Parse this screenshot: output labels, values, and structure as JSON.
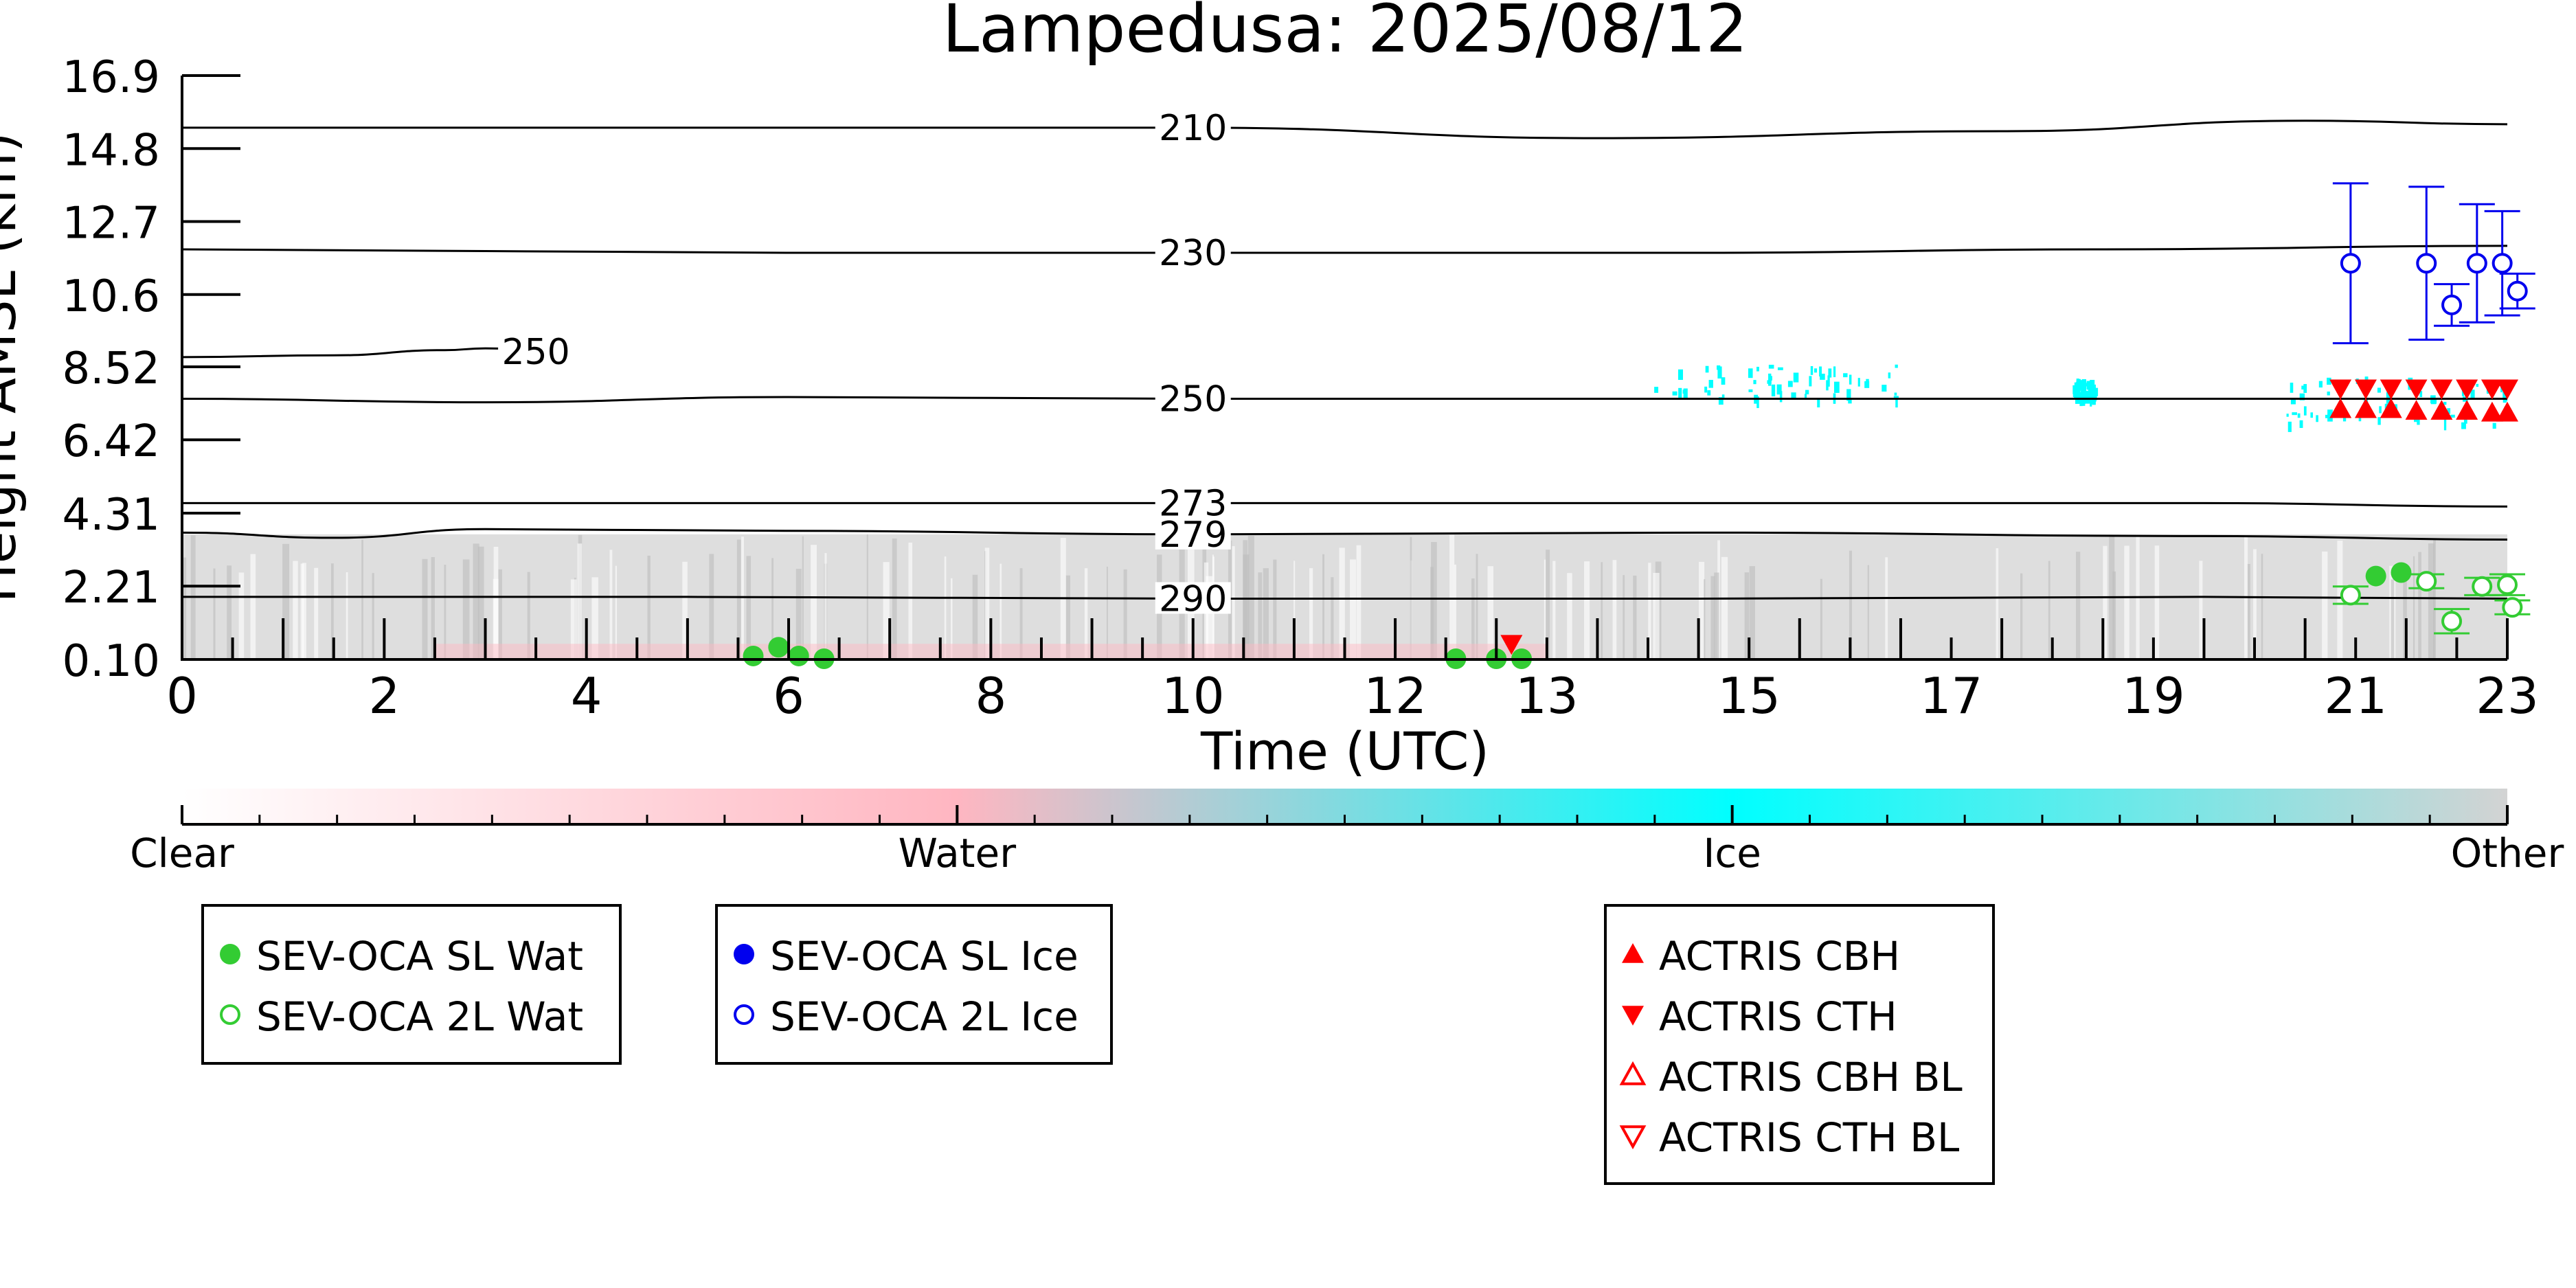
{
  "chart_data": {
    "type": "scatter",
    "title": "Lampedusa: 2025/08/12",
    "xlabel": "Time (UTC)",
    "ylabel": "Height AMSL (km)",
    "xlim": [
      0,
      23
    ],
    "ylim": [
      0.1,
      16.9
    ],
    "x_ticks": [
      {
        "value": 0,
        "label": "0"
      },
      {
        "value": 2,
        "label": "2"
      },
      {
        "value": 4,
        "label": "4"
      },
      {
        "value": 6,
        "label": "6"
      },
      {
        "value": 8,
        "label": "8"
      },
      {
        "value": 10,
        "label": "10"
      },
      {
        "value": 12,
        "label": "12"
      },
      {
        "value": 13.5,
        "label": "13"
      },
      {
        "value": 15.5,
        "label": "15"
      },
      {
        "value": 17.5,
        "label": "17"
      },
      {
        "value": 19.5,
        "label": "19"
      },
      {
        "value": 21.5,
        "label": "21"
      },
      {
        "value": 23,
        "label": "23"
      }
    ],
    "y_ticks": [
      {
        "value": 0.1,
        "label": "0.10"
      },
      {
        "value": 2.21,
        "label": "2.21"
      },
      {
        "value": 4.31,
        "label": "4.31"
      },
      {
        "value": 6.42,
        "label": "6.42"
      },
      {
        "value": 8.52,
        "label": "8.52"
      },
      {
        "value": 10.6,
        "label": "10.6"
      },
      {
        "value": 12.7,
        "label": "12.7"
      },
      {
        "value": 14.8,
        "label": "14.8"
      },
      {
        "value": 16.9,
        "label": "16.9"
      }
    ],
    "temperature_contours": [
      {
        "label": "210",
        "label_x": 10.0,
        "points": [
          [
            0,
            15.4
          ],
          [
            6,
            15.4
          ],
          [
            10,
            15.4
          ],
          [
            14,
            15.1
          ],
          [
            18,
            15.3
          ],
          [
            21,
            15.6
          ],
          [
            23,
            15.5
          ]
        ]
      },
      {
        "label": "230",
        "label_x": 10.0,
        "points": [
          [
            0,
            11.9
          ],
          [
            6,
            11.8
          ],
          [
            10,
            11.8
          ],
          [
            15,
            11.8
          ],
          [
            19,
            11.9
          ],
          [
            23,
            12.0
          ]
        ]
      },
      {
        "label": "250",
        "label_x": 3.5,
        "points": [
          [
            0,
            8.8
          ],
          [
            1.5,
            8.85
          ],
          [
            2.6,
            9.0
          ],
          [
            3.0,
            9.05
          ],
          [
            3.8,
            8.9
          ]
        ]
      },
      {
        "label": "250",
        "label_x": 10.0,
        "points": [
          [
            0,
            7.6
          ],
          [
            3,
            7.5
          ],
          [
            6,
            7.65
          ],
          [
            10,
            7.6
          ],
          [
            14,
            7.6
          ],
          [
            18,
            7.6
          ],
          [
            21,
            7.6
          ],
          [
            23,
            7.6
          ]
        ]
      },
      {
        "label": "273",
        "label_x": 10.0,
        "points": [
          [
            0,
            4.6
          ],
          [
            5,
            4.6
          ],
          [
            10,
            4.6
          ],
          [
            15,
            4.6
          ],
          [
            20,
            4.6
          ],
          [
            23,
            4.5
          ]
        ]
      },
      {
        "label": "279",
        "label_x": 10.0,
        "points": [
          [
            0,
            3.75
          ],
          [
            1.5,
            3.6
          ],
          [
            3,
            3.85
          ],
          [
            6,
            3.8
          ],
          [
            10,
            3.7
          ],
          [
            15,
            3.75
          ],
          [
            20,
            3.65
          ],
          [
            23,
            3.55
          ]
        ]
      },
      {
        "label": "290",
        "label_x": 10.0,
        "points": [
          [
            0,
            1.9
          ],
          [
            5,
            1.9
          ],
          [
            10,
            1.85
          ],
          [
            15,
            1.85
          ],
          [
            20,
            1.9
          ],
          [
            23,
            1.85
          ]
        ]
      }
    ],
    "classification_colorbar": {
      "labels": [
        "Clear",
        "Water",
        "Ice",
        "Other"
      ],
      "colors": [
        "#ffffff",
        "#ffb6c1",
        "#00ffff",
        "#d3d3d3"
      ]
    },
    "series": [
      {
        "name": "SEV-OCA SL Wat",
        "color": "#33cc33",
        "marker": "filled-circle",
        "points": [
          [
            5.65,
            0.2
          ],
          [
            5.9,
            0.45
          ],
          [
            6.1,
            0.2
          ],
          [
            6.35,
            0.12
          ],
          [
            12.6,
            0.12
          ],
          [
            13.0,
            0.12
          ],
          [
            13.25,
            0.12
          ],
          [
            21.7,
            2.5
          ],
          [
            21.95,
            2.6
          ]
        ]
      },
      {
        "name": "SEV-OCA 2L Wat",
        "color": "#33cc33",
        "marker": "open-circle",
        "points": [
          [
            21.45,
            1.95,
            0.25
          ],
          [
            22.2,
            2.35,
            0.2
          ],
          [
            22.45,
            1.2,
            0.35
          ],
          [
            22.75,
            2.2,
            0.25
          ],
          [
            23.0,
            2.25,
            0.3
          ],
          [
            23.05,
            1.6,
            0.2
          ]
        ]
      },
      {
        "name": "SEV-OCA SL Ice",
        "color": "#0000ee",
        "marker": "filled-circle",
        "points": []
      },
      {
        "name": "SEV-OCA 2L Ice",
        "color": "#0000ee",
        "marker": "open-circle",
        "points": [
          [
            21.45,
            11.5,
            2.3
          ],
          [
            22.2,
            11.5,
            2.2
          ],
          [
            22.45,
            10.3,
            0.6
          ],
          [
            22.7,
            11.5,
            1.7
          ],
          [
            22.95,
            11.5,
            1.5
          ],
          [
            23.1,
            10.7,
            0.5
          ]
        ]
      },
      {
        "name": "ACTRIS CBH",
        "color": "#ff0000",
        "marker": "triangle-up",
        "points": [
          [
            21.35,
            7.3
          ],
          [
            21.6,
            7.3
          ],
          [
            21.85,
            7.3
          ],
          [
            22.1,
            7.25
          ],
          [
            22.35,
            7.25
          ],
          [
            22.6,
            7.25
          ],
          [
            22.85,
            7.2
          ],
          [
            23.0,
            7.2
          ]
        ]
      },
      {
        "name": "ACTRIS CTH",
        "color": "#ff0000",
        "marker": "triangle-down",
        "points": [
          [
            13.15,
            0.55
          ],
          [
            21.35,
            7.9
          ],
          [
            21.6,
            7.9
          ],
          [
            21.85,
            7.9
          ],
          [
            22.1,
            7.9
          ],
          [
            22.35,
            7.9
          ],
          [
            22.6,
            7.9
          ],
          [
            22.85,
            7.9
          ],
          [
            23.0,
            7.9
          ]
        ]
      },
      {
        "name": "ACTRIS CBH BL",
        "color": "#ff0000",
        "marker": "open-triangle-up",
        "points": []
      },
      {
        "name": "ACTRIS CTH BL",
        "color": "#ff0000",
        "marker": "open-triangle-down",
        "points": []
      }
    ],
    "legend_groups": [
      {
        "entries": [
          {
            "series": 0,
            "label": "SEV-OCA SL Wat"
          },
          {
            "series": 1,
            "label": "SEV-OCA 2L Wat"
          }
        ]
      },
      {
        "entries": [
          {
            "series": 2,
            "label": "SEV-OCA SL Ice"
          },
          {
            "series": 3,
            "label": "SEV-OCA 2L Ice"
          }
        ]
      },
      {
        "entries": [
          {
            "series": 4,
            "label": "ACTRIS CBH"
          },
          {
            "series": 5,
            "label": "ACTRIS CTH"
          },
          {
            "series": 6,
            "label": "ACTRIS CBH BL"
          },
          {
            "series": 7,
            "label": "ACTRIS CTH BL"
          }
        ]
      }
    ],
    "grid": false
  }
}
